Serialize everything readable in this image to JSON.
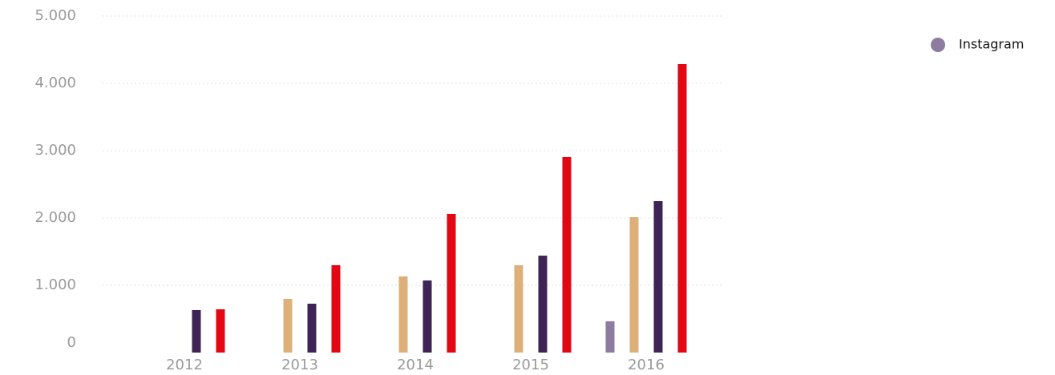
{
  "chart_data": {
    "type": "bar",
    "categories": [
      "2012",
      "2013",
      "2014",
      "2015",
      "2016"
    ],
    "series": [
      {
        "name": "Instagram",
        "color": "#8e7ba0",
        "values": [
          null,
          null,
          null,
          null,
          464
        ]
      },
      {
        "color": "#ddb07a",
        "values": [
          null,
          798,
          1131,
          1298,
          2012
        ]
      },
      {
        "color": "#3d2455",
        "values": [
          631,
          726,
          1071,
          1440,
          2250
        ]
      },
      {
        "color": "#e30613",
        "values": [
          643,
          1298,
          2060,
          2905,
          4286
        ]
      }
    ],
    "ylim": [
      0,
      5000
    ],
    "yticks": [
      0,
      {
        "value": 1000,
        "label": "1.000"
      },
      {
        "value": 2000,
        "label": "2.000"
      },
      {
        "value": 3000,
        "label": "3.000"
      },
      {
        "value": 4000,
        "label": "4.000"
      },
      {
        "value": 5000,
        "label": "5.000"
      }
    ],
    "grid": true
  }
}
